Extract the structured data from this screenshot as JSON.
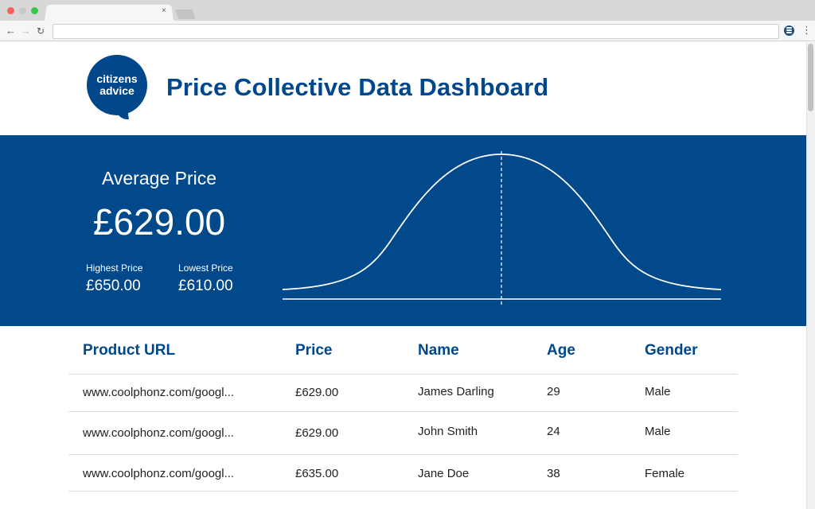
{
  "browser": {
    "tab_close_label": "×",
    "nav": {
      "back": "←",
      "forward": "→",
      "reload": "↻"
    },
    "menu_label": "⋮",
    "url": "",
    "extension_icon": "chat-bubble-icon"
  },
  "header": {
    "logo_line1": "citizens",
    "logo_line2": "advice",
    "title": "Price Collective Data Dashboard"
  },
  "summary": {
    "average_label": "Average Price",
    "average_value": "£629.00",
    "highest_label": "Highest Price",
    "highest_value": "£650.00",
    "lowest_label": "Lowest Price",
    "lowest_value": "£610.00"
  },
  "table": {
    "columns": [
      "Product URL",
      "Price",
      "Name",
      "Age",
      "Gender"
    ],
    "rows": [
      {
        "url": "www.coolphonz.com/googl...",
        "price": "£629.00",
        "name": "James Darling",
        "age": "29",
        "gender": "Male"
      },
      {
        "url": "www.coolphonz.com/googl...",
        "price": "£629.00",
        "name": "John Smith",
        "age": "24",
        "gender": "Male"
      },
      {
        "url": "www.coolphonz.com/googl...",
        "price": "£635.00",
        "name": "Jane Doe",
        "age": "38",
        "gender": "Female"
      }
    ]
  },
  "colors": {
    "brand_blue": "#00488b",
    "band_blue": "#02498b",
    "text": "#222222",
    "divider": "#dcdcdc"
  }
}
